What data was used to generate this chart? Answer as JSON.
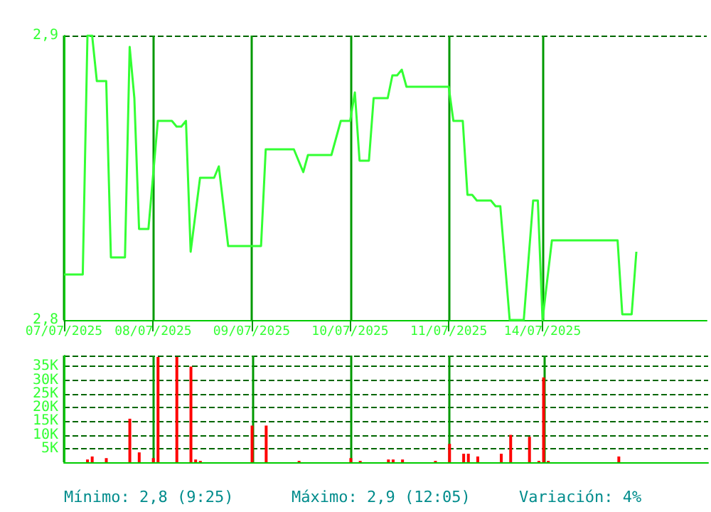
{
  "chart_data": [
    {
      "type": "line",
      "color": "#33ff33",
      "ylim": [
        2.8,
        2.9
      ],
      "grid": true,
      "categories": [
        "07/07/2025",
        null,
        null,
        null,
        null,
        null,
        null,
        null,
        null,
        null,
        null,
        null,
        null,
        null,
        null,
        null,
        null,
        null,
        null,
        "08/07/2025",
        null,
        null,
        null,
        null,
        null,
        null,
        null,
        null,
        null,
        null,
        null,
        null,
        null,
        null,
        null,
        null,
        null,
        null,
        null,
        null,
        "09/07/2025",
        null,
        null,
        null,
        null,
        null,
        null,
        null,
        null,
        null,
        null,
        null,
        null,
        null,
        null,
        null,
        null,
        null,
        null,
        null,
        null,
        "10/07/2025",
        null,
        null,
        null,
        null,
        null,
        null,
        null,
        null,
        null,
        null,
        null,
        null,
        null,
        null,
        null,
        null,
        null,
        null,
        null,
        null,
        "11/07/2025",
        null,
        null,
        null,
        null,
        null,
        null,
        null,
        null,
        null,
        null,
        null,
        null,
        null,
        null,
        null,
        null,
        null,
        null,
        null,
        "14/07/2025",
        null,
        null,
        null,
        null,
        null,
        null,
        null,
        null,
        null,
        null,
        null,
        null,
        null,
        null,
        null,
        null,
        null,
        null,
        null,
        null,
        null,
        null,
        null,
        null,
        null,
        null,
        null,
        null,
        null,
        null,
        null,
        null,
        null,
        null,
        null
      ],
      "yticks": [
        {
          "value": 2.8,
          "label": "2,8"
        },
        {
          "value": 2.9,
          "label": "2,9"
        }
      ],
      "values": [
        2.816,
        2.816,
        2.816,
        2.816,
        2.816,
        2.9,
        2.9,
        2.884,
        2.884,
        2.884,
        2.822,
        2.822,
        2.822,
        2.822,
        2.896,
        2.878,
        2.832,
        2.832,
        2.832,
        2.851,
        2.87,
        2.87,
        2.87,
        2.87,
        2.868,
        2.868,
        2.87,
        2.824,
        2.837,
        2.85,
        2.85,
        2.85,
        2.85,
        2.854,
        2.84,
        2.826,
        2.826,
        2.826,
        2.826,
        2.826,
        2.826,
        2.826,
        2.826,
        2.86,
        2.86,
        2.86,
        2.86,
        2.86,
        2.86,
        2.86,
        2.856,
        2.852,
        2.858,
        2.858,
        2.858,
        2.858,
        2.858,
        2.858,
        2.864,
        2.87,
        2.87,
        2.87,
        2.88,
        2.856,
        2.856,
        2.856,
        2.878,
        2.878,
        2.878,
        2.878,
        2.886,
        2.886,
        2.888,
        2.882,
        2.882,
        2.882,
        2.882,
        2.882,
        2.882,
        2.882,
        2.882,
        2.882,
        2.882,
        2.87,
        2.87,
        2.87,
        2.844,
        2.844,
        2.842,
        2.842,
        2.842,
        2.842,
        2.84,
        2.84,
        2.82,
        2.8,
        2.8,
        2.8,
        2.8,
        2.821,
        2.842,
        2.842,
        2.8,
        2.814,
        2.828,
        2.828,
        2.828,
        2.828,
        2.828,
        2.828,
        2.828,
        2.828,
        2.828,
        2.828,
        2.828,
        2.828,
        2.828,
        2.828,
        2.828,
        2.802,
        2.802,
        2.802,
        2.824,
        null,
        null,
        null,
        null,
        null,
        null,
        null,
        null,
        null,
        null,
        null,
        null,
        null,
        null,
        null
      ]
    },
    {
      "type": "bar",
      "color": "#ff0000",
      "ylim": [
        0,
        39000
      ],
      "grid": true,
      "tick_labels": "y",
      "categories": [
        null,
        null,
        null,
        null,
        null,
        null,
        null,
        null,
        null,
        null,
        null,
        null,
        null,
        null,
        null,
        null,
        null,
        null,
        null,
        null,
        null,
        null,
        null,
        null,
        null,
        null,
        null,
        null,
        null,
        null,
        null,
        null,
        null,
        null,
        null,
        null,
        null,
        null,
        null,
        null,
        null,
        null,
        null,
        null,
        null,
        null,
        null,
        null,
        null,
        null,
        null,
        null,
        null,
        null,
        null,
        null,
        null,
        null,
        null,
        null,
        null,
        null,
        null,
        null,
        null,
        null,
        null,
        null,
        null,
        null,
        null,
        null,
        null,
        null,
        null,
        null,
        null,
        null,
        null,
        null,
        null,
        null,
        null,
        null,
        null,
        null,
        null,
        null,
        null,
        null,
        null,
        null,
        null,
        null,
        null,
        null,
        null,
        null,
        null,
        null,
        null,
        null,
        null,
        null,
        null,
        null,
        null,
        null,
        null,
        null,
        null,
        null,
        null,
        null,
        null,
        null,
        null,
        null,
        null,
        null,
        null,
        null,
        null,
        null,
        null,
        null,
        null,
        null,
        null,
        null,
        null,
        null,
        null,
        null,
        null,
        null,
        null,
        null
      ],
      "yticks": [
        {
          "value": 5000,
          "label": "5K"
        },
        {
          "value": 10000,
          "label": "10K"
        },
        {
          "value": 15000,
          "label": "15K"
        },
        {
          "value": 20000,
          "label": "20K"
        },
        {
          "value": 25000,
          "label": "25K"
        },
        {
          "value": 30000,
          "label": "30K"
        },
        {
          "value": 35000,
          "label": "35K"
        }
      ],
      "values": [
        null,
        null,
        null,
        null,
        null,
        1000,
        2100,
        null,
        null,
        1500,
        null,
        null,
        null,
        null,
        15900,
        null,
        3600,
        null,
        null,
        1500,
        38500,
        null,
        null,
        null,
        38500,
        null,
        null,
        35000,
        1000,
        500,
        null,
        null,
        null,
        null,
        null,
        null,
        null,
        null,
        null,
        null,
        13400,
        null,
        null,
        13400,
        null,
        null,
        null,
        null,
        null,
        null,
        500,
        null,
        null,
        null,
        null,
        null,
        null,
        null,
        null,
        null,
        null,
        1500,
        null,
        500,
        null,
        null,
        null,
        null,
        null,
        1000,
        1000,
        null,
        1000,
        null,
        null,
        null,
        null,
        null,
        null,
        500,
        null,
        null,
        6700,
        null,
        null,
        3100,
        3100,
        null,
        2100,
        null,
        null,
        null,
        null,
        3100,
        null,
        10000,
        null,
        null,
        null,
        9300,
        null,
        500,
        31000,
        500,
        null,
        null,
        null,
        null,
        null,
        null,
        null,
        null,
        null,
        null,
        null,
        null,
        null,
        null,
        2100,
        null,
        null,
        null,
        null,
        null,
        null,
        null,
        null,
        null,
        null,
        null,
        null,
        null,
        null,
        null,
        null,
        null,
        null,
        null
      ],
      "annotations": [
        "Mínimo: 2,8 (9:25)",
        "Máximo: 2,9 (12:05)",
        "Variación: 4%"
      ]
    }
  ]
}
